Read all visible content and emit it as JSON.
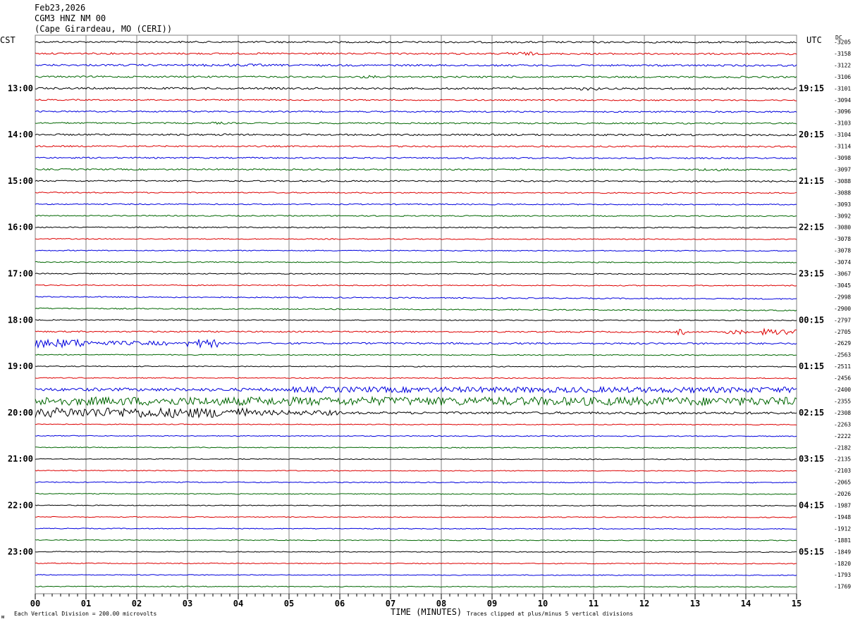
{
  "header": {
    "date": "Feb23,2026",
    "station": "CGM3 HNZ NM 00",
    "location": "(Cape Girardeau, MO (CERI))"
  },
  "left_zone_label": "CST",
  "right_zone_label": "UTC",
  "dc_label": "DC",
  "footer": {
    "vertical_division": "Each Vertical Division =  200.00 microvolts",
    "x_axis_label": "TIME (MINUTES)",
    "clip_note": "Traces clipped at plus/minus 5 vertical divisions",
    "logo_text": "ᴍ"
  },
  "colors": {
    "black": "#000000",
    "red": "#dd0000",
    "blue": "#0000dd",
    "green": "#006600",
    "grid": "#808080"
  },
  "chart_data": {
    "type": "line",
    "title": "",
    "xlabel": "TIME (MINUTES)",
    "xlim": [
      0,
      15
    ],
    "x_ticks": [
      "00",
      "01",
      "02",
      "03",
      "04",
      "05",
      "06",
      "07",
      "08",
      "09",
      "10",
      "11",
      "12",
      "13",
      "14",
      "15"
    ],
    "trace_interval_minutes": 15,
    "trace_color_cycle": [
      "black",
      "red",
      "blue",
      "green"
    ],
    "left_hour_labels": [
      {
        "trace": 4,
        "label": "13:00"
      },
      {
        "trace": 8,
        "label": "14:00"
      },
      {
        "trace": 12,
        "label": "15:00"
      },
      {
        "trace": 16,
        "label": "16:00"
      },
      {
        "trace": 20,
        "label": "17:00"
      },
      {
        "trace": 24,
        "label": "18:00"
      },
      {
        "trace": 28,
        "label": "19:00"
      },
      {
        "trace": 32,
        "label": "20:00"
      },
      {
        "trace": 36,
        "label": "21:00"
      },
      {
        "trace": 40,
        "label": "22:00"
      },
      {
        "trace": 44,
        "label": "23:00"
      }
    ],
    "right_hour_labels": [
      {
        "trace": 4,
        "label": "19:15"
      },
      {
        "trace": 8,
        "label": "20:15"
      },
      {
        "trace": 12,
        "label": "21:15"
      },
      {
        "trace": 16,
        "label": "22:15"
      },
      {
        "trace": 20,
        "label": "23:15"
      },
      {
        "trace": 24,
        "label": "00:15"
      },
      {
        "trace": 28,
        "label": "01:15"
      },
      {
        "trace": 32,
        "label": "02:15"
      },
      {
        "trace": 36,
        "label": "03:15"
      },
      {
        "trace": 40,
        "label": "04:15"
      },
      {
        "trace": 44,
        "label": "05:15"
      }
    ],
    "dc_offsets": [
      "-3205",
      "-3158",
      "-3122",
      "-3106",
      "-3101",
      "-3094",
      "-3096",
      "-3103",
      "-3104",
      "-3114",
      "-3098",
      "-3097",
      "-3088",
      "-3088",
      "-3093",
      "-3092",
      "-3080",
      "-3078",
      "-3078",
      "-3074",
      "-3067",
      "-3045",
      "-2998",
      "-2900",
      "-2797",
      "-2705",
      "-2629",
      "-2563",
      "-2511",
      "-2456",
      "-2400",
      "-2355",
      "-2308",
      "-2263",
      "-2222",
      "-2182",
      "-2135",
      "-2103",
      "-2065",
      "-2026",
      "-1987",
      "-1948",
      "-1912",
      "-1881",
      "-1849",
      "-1820",
      "-1793",
      "-1769"
    ],
    "activity": [
      1.2,
      1.2,
      1.3,
      1.2,
      1.3,
      0.9,
      1.0,
      1.0,
      1.2,
      1.0,
      1.0,
      1.0,
      1.0,
      0.8,
      0.8,
      0.8,
      0.8,
      0.7,
      0.7,
      0.7,
      0.7,
      0.7,
      0.8,
      0.8,
      0.7,
      1.0,
      1.2,
      0.7,
      0.7,
      0.7,
      2.2,
      3.5,
      1.6,
      0.6,
      0.6,
      0.6,
      0.6,
      0.6,
      0.7,
      0.6,
      0.6,
      0.6,
      0.6,
      0.6,
      0.6,
      0.6,
      0.6,
      0.6
    ],
    "bursts": [
      {
        "trace": 1,
        "from_min": 9.3,
        "to_min": 9.9,
        "amp": 2.5
      },
      {
        "trace": 2,
        "from_min": 3.3,
        "to_min": 4.5,
        "amp": 1.8
      },
      {
        "trace": 3,
        "from_min": 6.4,
        "to_min": 6.7,
        "amp": 2.0
      },
      {
        "trace": 4,
        "from_min": 10.7,
        "to_min": 11.1,
        "amp": 2.5
      },
      {
        "trace": 7,
        "from_min": 3.5,
        "to_min": 3.8,
        "amp": 1.6
      },
      {
        "trace": 8,
        "from_min": 3.6,
        "to_min": 4.0,
        "amp": 1.6
      },
      {
        "trace": 11,
        "from_min": 13.0,
        "to_min": 13.7,
        "amp": 1.8
      },
      {
        "trace": 25,
        "from_min": 12.6,
        "to_min": 12.8,
        "amp": 4.0
      },
      {
        "trace": 25,
        "from_min": 13.6,
        "to_min": 14.0,
        "amp": 3.0
      },
      {
        "trace": 25,
        "from_min": 14.3,
        "to_min": 15.0,
        "amp": 4.5
      },
      {
        "trace": 26,
        "from_min": 0.0,
        "to_min": 1.0,
        "amp": 6.0
      },
      {
        "trace": 26,
        "from_min": 1.0,
        "to_min": 2.6,
        "amp": 3.0
      },
      {
        "trace": 26,
        "from_min": 3.0,
        "to_min": 3.6,
        "amp": 6.0
      },
      {
        "trace": 30,
        "from_min": 5.0,
        "to_min": 15.0,
        "amp": 4.0
      },
      {
        "trace": 31,
        "from_min": 0.0,
        "to_min": 15.0,
        "amp": 6.0
      },
      {
        "trace": 32,
        "from_min": 0.0,
        "to_min": 4.2,
        "amp": 7.0
      },
      {
        "trace": 32,
        "from_min": 4.2,
        "to_min": 6.0,
        "amp": 3.5
      }
    ]
  }
}
